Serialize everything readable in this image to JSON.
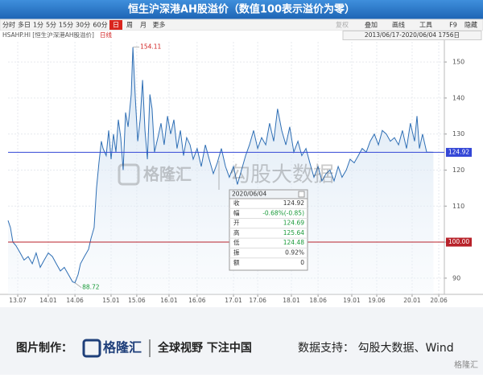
{
  "header": {
    "title": "恒生沪深港AH股溢价（数值100表示溢价为零）",
    "toolbar_left": [
      "分时",
      "多日",
      "1分",
      "5分",
      "15分",
      "30分",
      "60分",
      "日",
      "周",
      "月",
      "更多"
    ],
    "active_index": 7,
    "toolbar_right": [
      "复权",
      "叠加",
      "画线",
      "工具",
      "F9",
      "隐藏"
    ],
    "symbol": "HSAHP.HI [恒生沪深港AH股溢价]",
    "period": "日线",
    "range": "2013/06/17-2020/06/04 1756日"
  },
  "chart_data": {
    "type": "area-line",
    "color": "#2f6fb5",
    "x": [
      0,
      10,
      20,
      33,
      50,
      66,
      83,
      100,
      116,
      133,
      149,
      166,
      183,
      199,
      216,
      232,
      249,
      266,
      276,
      289,
      299,
      315,
      332,
      342,
      355,
      365,
      375,
      385,
      392,
      405,
      415,
      425,
      435,
      445,
      455,
      465,
      475,
      485,
      495,
      508,
      515,
      525,
      535,
      545,
      555,
      565,
      575,
      585,
      594,
      604,
      618,
      631,
      644,
      658,
      671,
      684,
      697,
      711,
      724,
      737,
      751,
      764,
      780,
      797,
      814,
      830,
      847,
      863,
      880,
      897,
      913,
      930,
      946,
      963,
      980,
      996,
      1013,
      1030,
      1046,
      1063,
      1079,
      1096,
      1112,
      1129,
      1146,
      1162,
      1179,
      1196,
      1212,
      1229,
      1245,
      1262,
      1279,
      1295,
      1312,
      1328,
      1345,
      1362,
      1378,
      1395,
      1411,
      1428,
      1445,
      1461,
      1478,
      1494,
      1511,
      1528,
      1544,
      1561,
      1577,
      1594,
      1611,
      1627,
      1644,
      1660,
      1677,
      1687,
      1697,
      1710,
      1727,
      1755
    ],
    "values": [
      106,
      104,
      100,
      99,
      97,
      95,
      96,
      94,
      97,
      93,
      95,
      97,
      96,
      94,
      92,
      93,
      91,
      89,
      88.72,
      91,
      94,
      96,
      98,
      101,
      104,
      115,
      122,
      128,
      126,
      124,
      131,
      123,
      130,
      125,
      134,
      129,
      120,
      136,
      132,
      141,
      154.11,
      140,
      128,
      134,
      145,
      131,
      123,
      141,
      137,
      125,
      129,
      133,
      127,
      135,
      130,
      134,
      126,
      131,
      124,
      129,
      127,
      123,
      126,
      121,
      127,
      123,
      119,
      122,
      126,
      121,
      118,
      121,
      116,
      120,
      124,
      127,
      131,
      126,
      129,
      127,
      133,
      128,
      137,
      131,
      127,
      132,
      125,
      128,
      124,
      126,
      122,
      118,
      121,
      117,
      119,
      120,
      117,
      121,
      118,
      120,
      123,
      122,
      124,
      126,
      125,
      128,
      130,
      127,
      131,
      130,
      128,
      129,
      127,
      131,
      126,
      133,
      128,
      135,
      126,
      130,
      125,
      124.92
    ],
    "xlim": [
      0,
      1800
    ],
    "xticks": [
      {
        "value": 40,
        "label": "13.07"
      },
      {
        "value": 166,
        "label": "14.01"
      },
      {
        "value": 276,
        "label": "14.06"
      },
      {
        "value": 425,
        "label": "15.01"
      },
      {
        "value": 531,
        "label": "15.06"
      },
      {
        "value": 664,
        "label": "16.01"
      },
      {
        "value": 780,
        "label": "16.06"
      },
      {
        "value": 930,
        "label": "17.01"
      },
      {
        "value": 1030,
        "label": "17.06"
      },
      {
        "value": 1169,
        "label": "18.01"
      },
      {
        "value": 1279,
        "label": "18.06"
      },
      {
        "value": 1418,
        "label": "19.01"
      },
      {
        "value": 1521,
        "label": "19.06"
      },
      {
        "value": 1667,
        "label": "20.01"
      },
      {
        "value": 1777,
        "label": "20.06"
      }
    ],
    "ylim": [
      85.5,
      155.6
    ],
    "yticks": [
      90,
      100,
      110,
      120,
      130,
      140,
      150
    ],
    "grid": true,
    "hlines": [
      {
        "value": 124.92,
        "label": "124.92",
        "color": "#3346d6"
      },
      {
        "value": 100,
        "label": "100.00",
        "color": "#b8222a"
      }
    ],
    "annotations": [
      {
        "x": 515,
        "value": 154.11,
        "label": "154.11"
      },
      {
        "x": 276,
        "value": 88.72,
        "label": "88.72"
      }
    ]
  },
  "tooltip": {
    "date": "2020/06/04",
    "rows": [
      [
        "收",
        "124.92"
      ],
      [
        "幅",
        "-0.68%(-0.85)"
      ],
      [
        "开",
        "124.69"
      ],
      [
        "高",
        "125.64"
      ],
      [
        "低",
        "124.48"
      ],
      [
        "振",
        "0.92%"
      ],
      [
        "额",
        "0"
      ]
    ]
  },
  "watermark": {
    "brand": "格隆汇",
    "source": "勾股大数据"
  },
  "footer": {
    "made_by": "图片制作：",
    "logo": "格隆汇",
    "slogan": "全球视野 下注中国",
    "data_source": "数据支持：  勾股大数据、Wind",
    "corner": "格隆汇"
  }
}
